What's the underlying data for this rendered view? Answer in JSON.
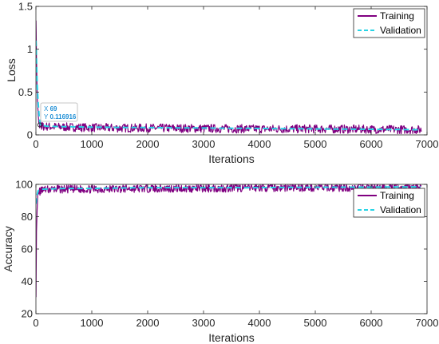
{
  "colors": {
    "training": "#800080",
    "validation": "#27d4e6",
    "axis": "#262626",
    "grid_box": "#262626",
    "datatip_label": "#1f8fd6",
    "datatip_border": "#b5b5b5"
  },
  "chart_data": [
    {
      "type": "line",
      "title": "",
      "xlabel": "Iterations",
      "ylabel": "Loss",
      "xlim": [
        0,
        7000
      ],
      "ylim": [
        0,
        1.5
      ],
      "xticks": [
        "0",
        "1000",
        "2000",
        "3000",
        "4000",
        "5000",
        "6000",
        "7000"
      ],
      "yticks": [
        "0",
        "0.5",
        "1",
        "1.5"
      ],
      "legend_position": "top-right",
      "series": [
        {
          "name": "Training",
          "style": "solid",
          "x": [
            1,
            10,
            25,
            50,
            69,
            100,
            300,
            600,
            1000,
            1500,
            2000,
            3000,
            4000,
            5000,
            6000,
            6900
          ],
          "y": [
            1.35,
            0.9,
            0.4,
            0.15,
            0.117,
            0.1,
            0.095,
            0.09,
            0.085,
            0.08,
            0.08,
            0.075,
            0.07,
            0.07,
            0.065,
            0.06
          ],
          "noise_amplitude": 0.05
        },
        {
          "name": "Validation",
          "style": "dashed",
          "x": [
            1,
            25,
            69,
            200,
            1000,
            2000,
            3000,
            4000,
            5000,
            6000,
            6900
          ],
          "y": [
            1.1,
            0.5,
            0.117,
            0.1,
            0.09,
            0.085,
            0.08,
            0.075,
            0.07,
            0.065,
            0.06
          ]
        }
      ],
      "datatip": {
        "x_label": "X",
        "x_value": "69",
        "y_label": "Y",
        "y_value": "0.116916",
        "x": 69,
        "y": 0.116916
      }
    },
    {
      "type": "line",
      "title": "",
      "xlabel": "Iterations",
      "ylabel": "Accuracy",
      "xlim": [
        0,
        7000
      ],
      "ylim": [
        20,
        100
      ],
      "xticks": [
        "0",
        "1000",
        "2000",
        "3000",
        "4000",
        "5000",
        "6000",
        "7000"
      ],
      "yticks": [
        "20",
        "40",
        "60",
        "80",
        "100"
      ],
      "legend_position": "top-right",
      "series": [
        {
          "name": "Training",
          "style": "solid",
          "x": [
            1,
            10,
            30,
            60,
            100,
            300,
            1000,
            2000,
            3000,
            4000,
            5000,
            6000,
            6900
          ],
          "y": [
            31,
            70,
            93,
            95.5,
            96.5,
            97,
            97,
            97.5,
            97.5,
            98,
            98,
            98,
            98.5
          ],
          "noise_amplitude": 2.5
        },
        {
          "name": "Validation",
          "style": "dashed",
          "x": [
            1,
            30,
            100,
            500,
            1000,
            2000,
            3000,
            4000,
            5000,
            6000,
            6900
          ],
          "y": [
            88,
            96,
            97,
            97.5,
            97.5,
            98,
            98,
            98,
            98.2,
            98.3,
            98.5
          ]
        }
      ]
    }
  ]
}
